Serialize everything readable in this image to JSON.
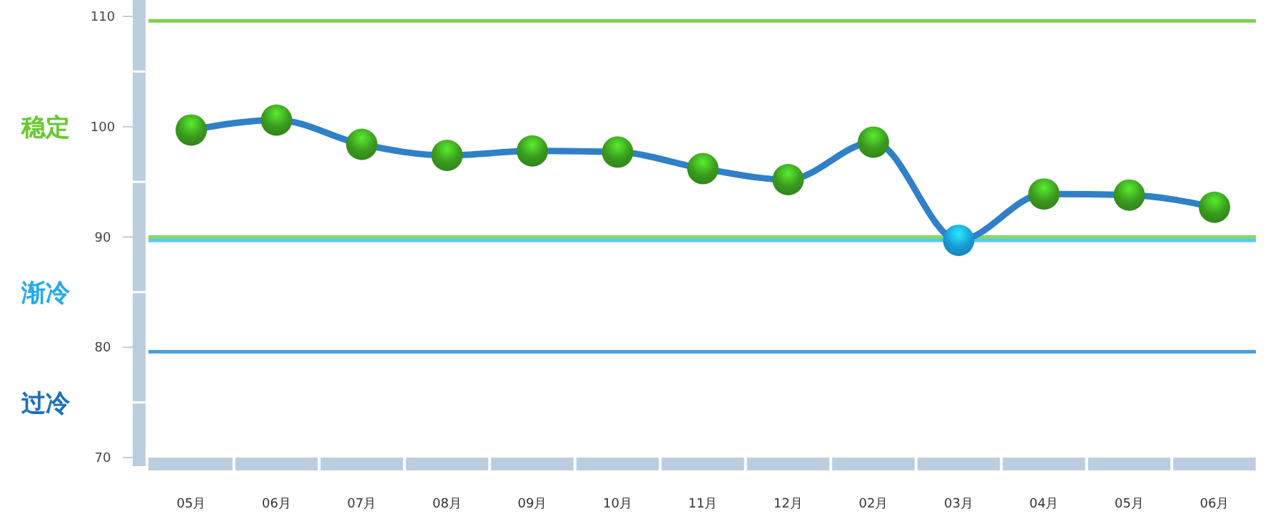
{
  "chart_data": {
    "type": "line",
    "categories": [
      "05月",
      "06月",
      "07月",
      "08月",
      "09月",
      "10月",
      "11月",
      "12月",
      "02月",
      "03月",
      "04月",
      "05月",
      "06月"
    ],
    "series": [
      {
        "color": "#2f80c8",
        "values": [
          99.7,
          100.6,
          98.4,
          97.4,
          97.8,
          97.7,
          96.2,
          95.2,
          98.6,
          89.7,
          93.9,
          93.8,
          92.7
        ],
        "colors": [
          "#3a9a1e",
          "#3a9a1e",
          "#3a9a1e",
          "#3a9a1e",
          "#3a9a1e",
          "#3a9a1e",
          "#3a9a1e",
          "#3a9a1e",
          "#3a9a1e",
          "#1a9ad6",
          "#3a9a1e",
          "#3a9a1e",
          "#3a9a1e"
        ]
      }
    ],
    "ylim": [
      70,
      110
    ],
    "yticks": [
      70,
      80,
      90,
      100,
      110
    ],
    "marker": "circle",
    "grid": false,
    "ref_lines": [
      {
        "axis": "y",
        "value": 109.6,
        "color": "#7fd04a"
      },
      {
        "axis": "y",
        "value": 90,
        "color": "#86d86a"
      },
      {
        "axis": "y",
        "value": 89.7,
        "color": "#5cc8f0"
      },
      {
        "axis": "y",
        "value": 79.6,
        "color": "#4a9ee0"
      }
    ],
    "annotations": [
      "稳定",
      "渐冷",
      "过冷"
    ]
  }
}
